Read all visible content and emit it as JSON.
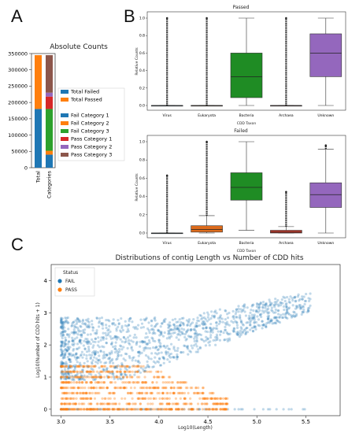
{
  "panel_labels": {
    "a": "A",
    "b": "B",
    "c": "C"
  },
  "colors": {
    "total_failed": "#1f77b4",
    "total_passed": "#ff7f0e",
    "fail_cat1": "#1f77b4",
    "fail_cat2": "#ff7f0e",
    "fail_cat3": "#2ca02c",
    "pass_cat1": "#d62728",
    "pass_cat2": "#9467bd",
    "pass_cat3": "#8c564b",
    "box_virus": "#1f77b4",
    "box_eukaryota": "#dd6b1c",
    "box_bacteria": "#1f8c24",
    "box_archaea": "#c0392b",
    "box_unknown": "#9467bd",
    "fail_scatter": "#1f77b4",
    "pass_scatter": "#ff7f0e"
  },
  "chart_data": [
    {
      "id": "A",
      "type": "bar",
      "stacked": true,
      "title": "Absolute Counts",
      "categories": [
        "Total",
        "Categories"
      ],
      "ylim": [
        0,
        350000
      ],
      "yticks": [
        "0",
        "50000",
        "100000",
        "150000",
        "200000",
        "250000",
        "300000",
        "350000"
      ],
      "series": [
        {
          "name": "Total Failed",
          "values": [
            180000,
            0
          ]
        },
        {
          "name": "Total Passed",
          "values": [
            165000,
            0
          ]
        },
        {
          "name": "Fail Category 1",
          "values": [
            0,
            40000
          ]
        },
        {
          "name": "Fail Category 2",
          "values": [
            0,
            12000
          ]
        },
        {
          "name": "Fail Category 3",
          "values": [
            0,
            128000
          ]
        },
        {
          "name": "Pass Category 1",
          "values": [
            0,
            38000
          ]
        },
        {
          "name": "Pass Category 2",
          "values": [
            0,
            12000
          ]
        },
        {
          "name": "Pass Category 3",
          "values": [
            0,
            115000
          ]
        }
      ],
      "legend_position": "right"
    },
    {
      "id": "B-top",
      "type": "box",
      "title": "Passed",
      "xlabel": "CDD Taxon",
      "ylabel": "Relative Counts",
      "ylim": [
        0,
        1.0
      ],
      "yticks": [
        "0.0",
        "0.2",
        "0.4",
        "0.6",
        "0.8",
        "1.0"
      ],
      "categories": [
        "Virus",
        "Eukaryota",
        "Bacteria",
        "Archaea",
        "Unknown"
      ],
      "boxes": [
        {
          "min": 0,
          "q1": 0,
          "median": 0,
          "q3": 0,
          "max": 0,
          "fliers_top": 1.0
        },
        {
          "min": 0,
          "q1": 0,
          "median": 0,
          "q3": 0,
          "max": 0,
          "fliers_top": 1.0
        },
        {
          "min": 0,
          "q1": 0.09,
          "median": 0.33,
          "q3": 0.6,
          "max": 1.0,
          "fliers_top": null
        },
        {
          "min": 0,
          "q1": 0,
          "median": 0,
          "q3": 0,
          "max": 0,
          "fliers_top": 1.0
        },
        {
          "min": 0,
          "q1": 0.33,
          "median": 0.6,
          "q3": 0.82,
          "max": 1.0,
          "fliers_top": null
        }
      ]
    },
    {
      "id": "B-bottom",
      "type": "box",
      "title": "Failed",
      "xlabel": "CDD Taxon",
      "ylabel": "Relative Counts",
      "ylim": [
        0,
        1.0
      ],
      "yticks": [
        "0.0",
        "0.2",
        "0.4",
        "0.6",
        "0.8",
        "1.0"
      ],
      "categories": [
        "Virus",
        "Eukaryota",
        "Bacteria",
        "Archaea",
        "Unknown"
      ],
      "boxes": [
        {
          "min": 0,
          "q1": 0,
          "median": 0,
          "q3": 0,
          "max": 0,
          "fliers_top": 0.63
        },
        {
          "min": 0,
          "q1": 0.01,
          "median": 0.04,
          "q3": 0.08,
          "max": 0.19,
          "fliers_top": 1.0
        },
        {
          "min": 0.03,
          "q1": 0.36,
          "median": 0.5,
          "q3": 0.66,
          "max": 1.0,
          "fliers_top": null
        },
        {
          "min": 0,
          "q1": 0,
          "median": 0.01,
          "q3": 0.03,
          "max": 0.07,
          "fliers_top": 0.45
        },
        {
          "min": 0,
          "q1": 0.28,
          "median": 0.42,
          "q3": 0.55,
          "max": 0.92,
          "fliers_top": 0.96
        }
      ]
    },
    {
      "id": "C",
      "type": "scatter",
      "title": "Distributions of contig Length vs Number of CDD hits",
      "xlabel": "Log10(Length)",
      "ylabel": "Log10(Number of CDD hits + 1)",
      "xlim": [
        2.9,
        5.85
      ],
      "ylim": [
        -0.2,
        4.5
      ],
      "xticks": [
        "3.0",
        "3.5",
        "4.0",
        "4.5",
        "5.0",
        "5.5"
      ],
      "yticks": [
        "0",
        "1",
        "2",
        "3",
        "4"
      ],
      "legend_title": "Status",
      "series": [
        {
          "name": "FAIL"
        },
        {
          "name": "PASS"
        }
      ]
    }
  ]
}
